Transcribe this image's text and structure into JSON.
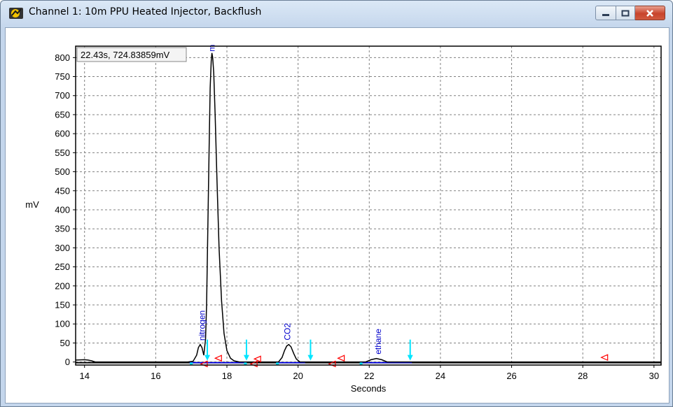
{
  "window": {
    "title": "Channel 1: 10m PPU Heated Injector, Backflush",
    "buttons": {
      "minimize": "minimize",
      "maximize": "maximize",
      "close": "close"
    }
  },
  "cursor_readout": "22.43s, 724.83859mV",
  "colors": {
    "trace": "#000000",
    "baseline": "#0000ff",
    "label": "#0000cc",
    "event_marker": "#00e5ff",
    "peak_marker": "#ff0000",
    "grid": "#808080"
  },
  "chart_data": {
    "type": "line",
    "xlabel": "Seconds",
    "ylabel": "mV",
    "xlim": [
      13.75,
      30.2
    ],
    "ylim": [
      -8,
      830
    ],
    "xticks": [
      14,
      16,
      18,
      20,
      22,
      24,
      26,
      28,
      30
    ],
    "yticks": [
      0,
      50,
      100,
      150,
      200,
      250,
      300,
      350,
      400,
      450,
      500,
      550,
      600,
      650,
      700,
      750,
      800
    ],
    "grid": true,
    "series": [
      {
        "x": [
          13.75,
          14.0,
          14.1,
          14.2,
          14.3,
          16.9,
          17.05,
          17.15,
          17.2,
          17.25,
          17.3,
          17.35,
          17.4,
          17.43,
          17.46,
          17.5,
          17.53,
          17.56,
          17.58,
          17.6,
          17.63,
          17.67,
          17.72,
          17.78,
          17.85,
          17.92,
          18.0,
          18.1,
          18.2,
          18.35,
          19.45,
          19.55,
          19.62,
          19.68,
          19.74,
          19.8,
          19.88,
          19.95,
          20.05,
          21.9,
          22.05,
          22.2,
          22.35,
          22.5,
          30.2
        ],
        "y": [
          5,
          6,
          5,
          3,
          0,
          0,
          2,
          18,
          38,
          46,
          38,
          18,
          60,
          150,
          320,
          560,
          720,
          790,
          812,
          800,
          760,
          650,
          480,
          300,
          160,
          75,
          30,
          10,
          3,
          0,
          0,
          12,
          30,
          42,
          46,
          40,
          22,
          8,
          0,
          0,
          6,
          9,
          6,
          0,
          0
        ]
      }
    ],
    "baselines": [
      {
        "x": [
          16.95,
          18.55
        ]
      },
      {
        "x": [
          19.4,
          20.2
        ]
      },
      {
        "x": [
          21.75,
          23.2
        ]
      }
    ],
    "peak_labels": [
      {
        "text": "nitrogen",
        "x": 17.3
      },
      {
        "text": "m",
        "x": 17.58
      },
      {
        "text": "CO2",
        "x": 19.7
      },
      {
        "text": "ethane",
        "x": 22.25
      }
    ],
    "event_arrows": [
      17.45,
      18.55,
      20.35,
      23.15
    ],
    "peak_triangles": [
      {
        "x": 17.75,
        "y": 10
      },
      {
        "x": 18.85,
        "y": 8
      },
      {
        "x": 21.2,
        "y": 10
      },
      {
        "x": 28.6,
        "y": 12
      },
      {
        "x": 17.35,
        "y": -5
      },
      {
        "x": 18.75,
        "y": -5
      },
      {
        "x": 20.95,
        "y": -5
      }
    ],
    "small_squares": [
      {
        "x": 17.0,
        "y": -5
      },
      {
        "x": 18.52,
        "y": -5
      },
      {
        "x": 19.42,
        "y": -5
      },
      {
        "x": 21.77,
        "y": -5
      }
    ]
  }
}
